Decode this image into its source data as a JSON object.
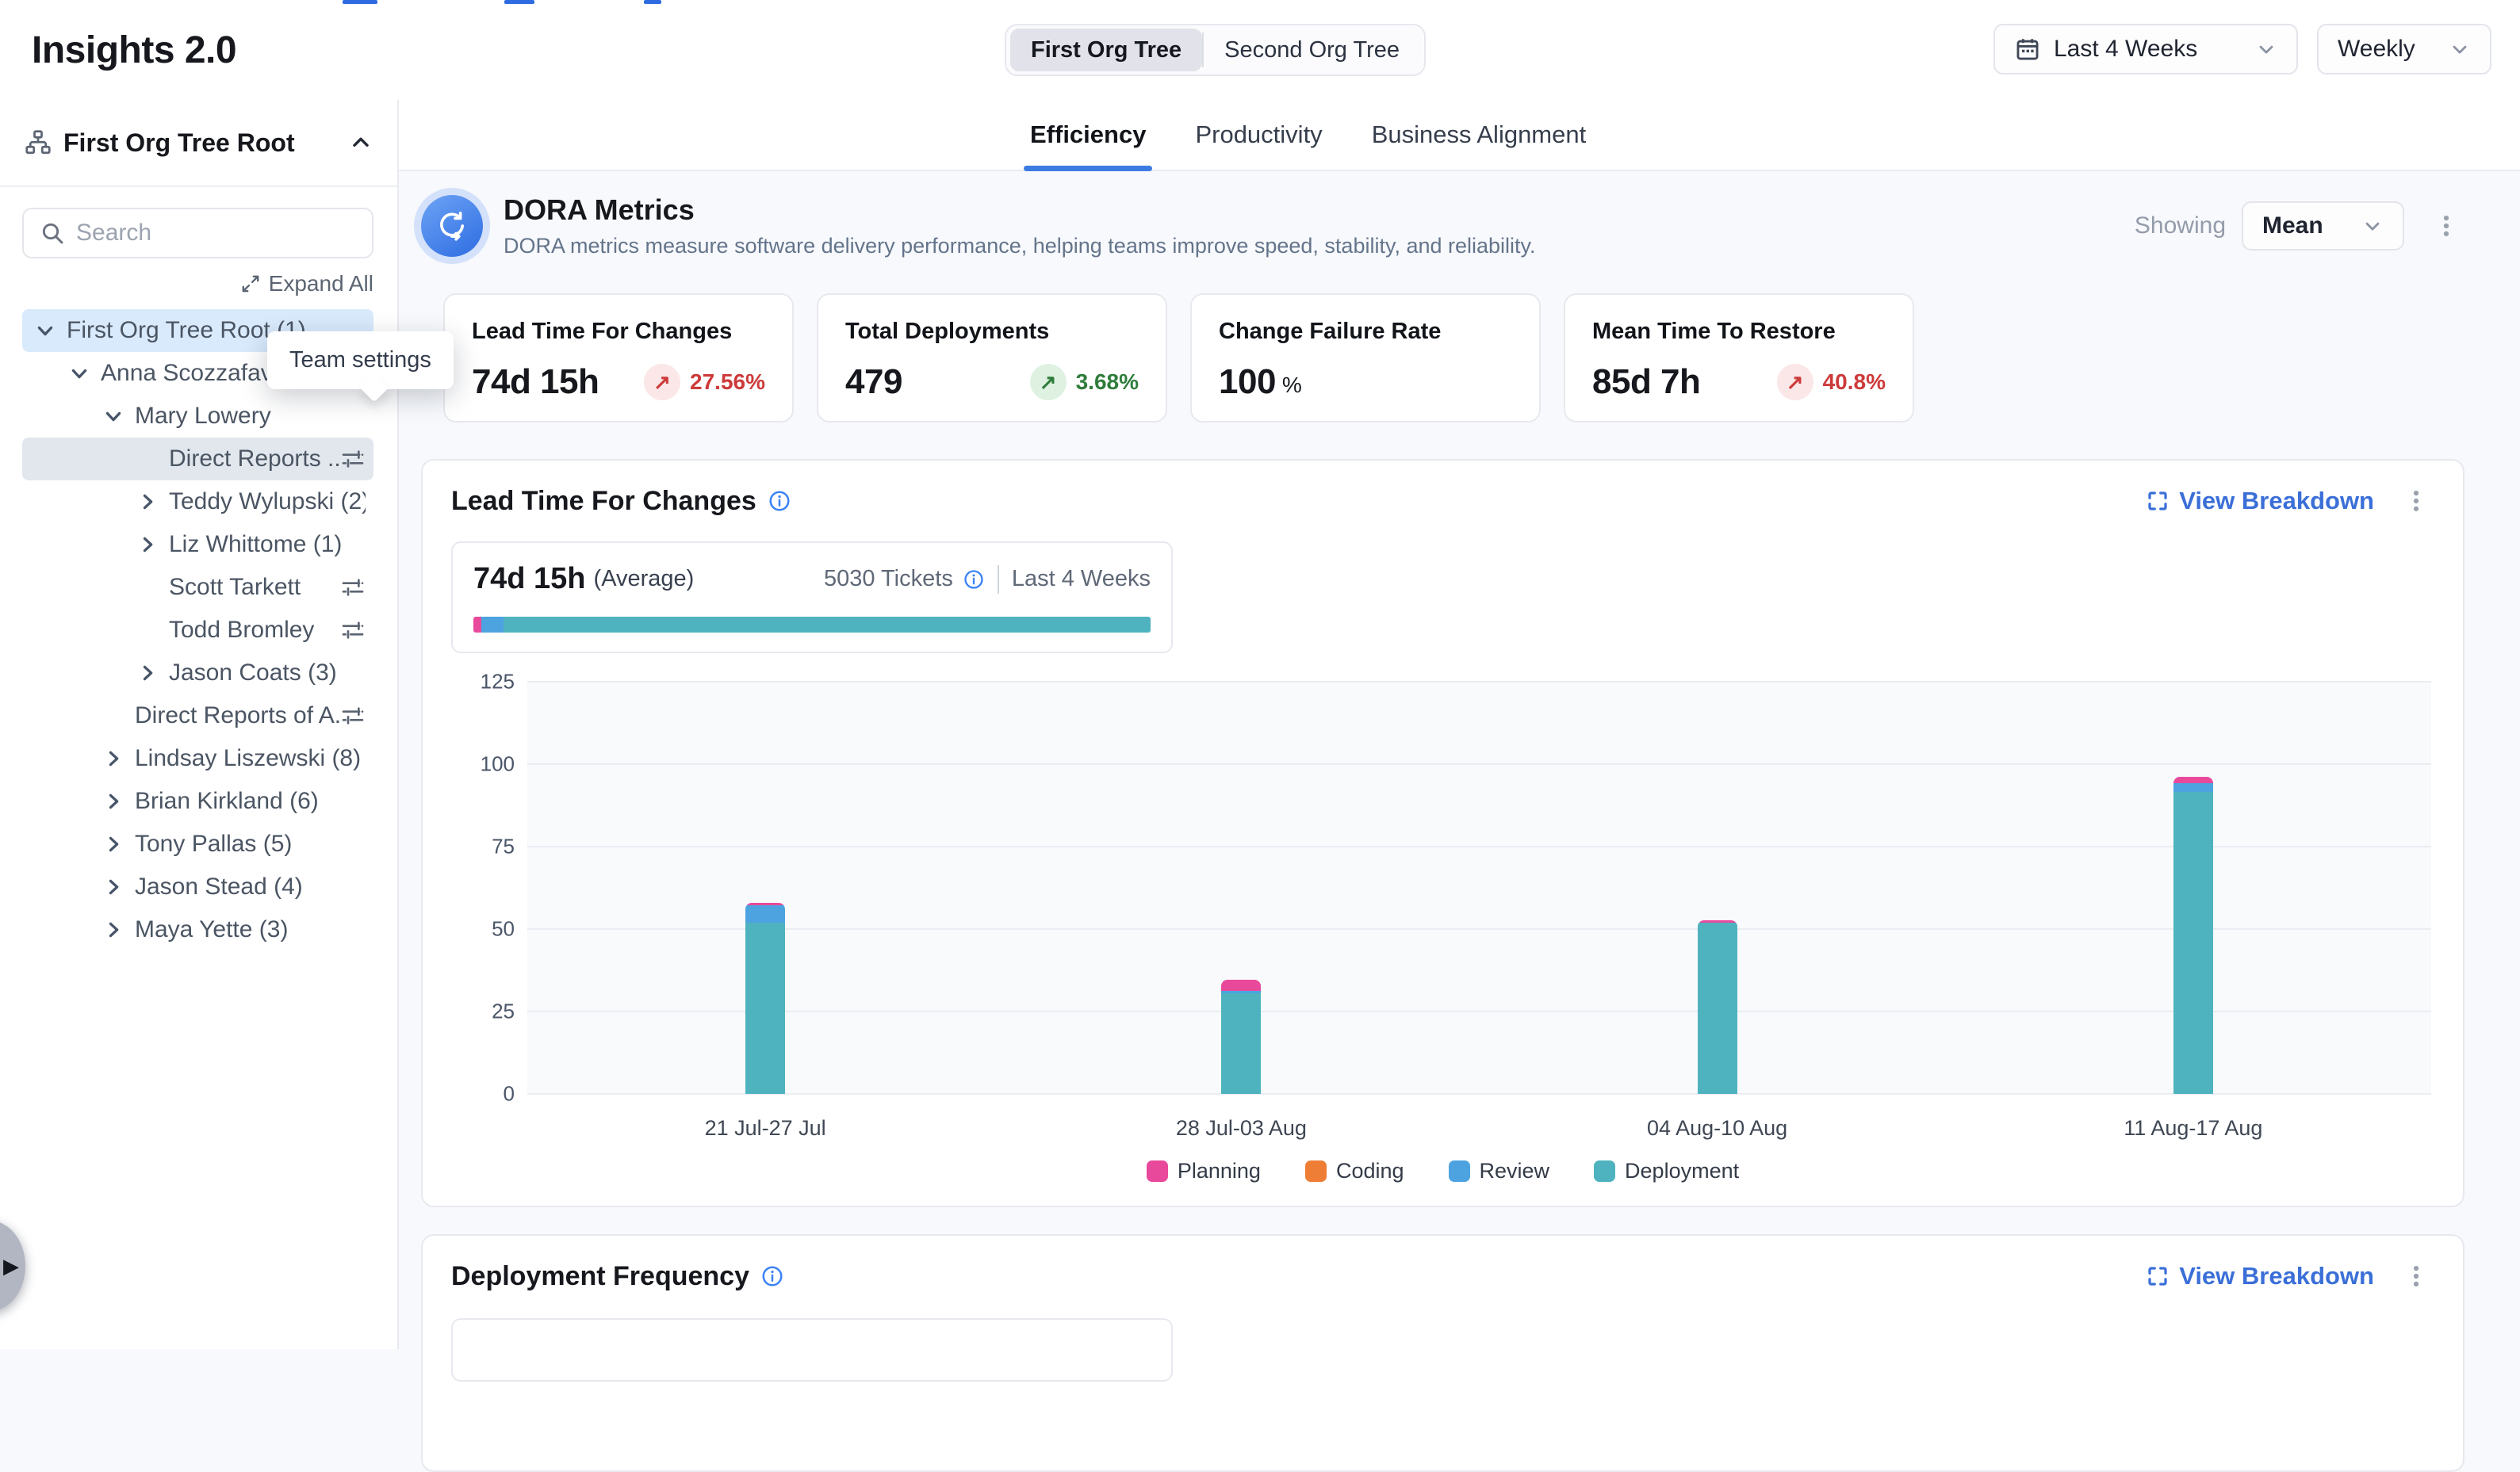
{
  "app": {
    "title": "Insights 2.0"
  },
  "header": {
    "org_toggle": {
      "options": [
        "First Org Tree",
        "Second Org Tree"
      ],
      "selected": "First Org Tree"
    },
    "date_range": "Last 4 Weeks",
    "granularity": "Weekly"
  },
  "sidebar": {
    "header": "First Org Tree Root",
    "search_placeholder": "Search",
    "expand_all": "Expand All",
    "tooltip": "Team settings",
    "tree": [
      {
        "label": "First Org Tree Root (1)",
        "level": 0,
        "chevron": "down",
        "selected": true,
        "settings": false,
        "hovered": false
      },
      {
        "label": "Anna Scozzafava",
        "level": 1,
        "chevron": "down",
        "selected": false,
        "settings": false,
        "hovered": false
      },
      {
        "label": "Mary Lowery",
        "level": 2,
        "chevron": "down",
        "selected": false,
        "settings": false,
        "hovered": false
      },
      {
        "label": "Direct Reports ...",
        "level": 3,
        "chevron": "none",
        "selected": false,
        "settings": true,
        "hovered": true
      },
      {
        "label": "Teddy Wylupski (2)",
        "level": 3,
        "chevron": "right",
        "selected": false,
        "settings": false,
        "hovered": false
      },
      {
        "label": "Liz Whittome (1)",
        "level": 3,
        "chevron": "right",
        "selected": false,
        "settings": false,
        "hovered": false
      },
      {
        "label": "Scott Tarkett",
        "level": 3,
        "chevron": "none",
        "selected": false,
        "settings": true,
        "hovered": false
      },
      {
        "label": "Todd Bromley",
        "level": 3,
        "chevron": "none",
        "selected": false,
        "settings": true,
        "hovered": false
      },
      {
        "label": "Jason Coats (3)",
        "level": 3,
        "chevron": "right",
        "selected": false,
        "settings": false,
        "hovered": false
      },
      {
        "label": "Direct Reports of A...",
        "level": 2,
        "chevron": "none",
        "selected": false,
        "settings": true,
        "hovered": false
      },
      {
        "label": "Lindsay Liszewski (8)",
        "level": 2,
        "chevron": "right",
        "selected": false,
        "settings": false,
        "hovered": false
      },
      {
        "label": "Brian Kirkland (6)",
        "level": 2,
        "chevron": "right",
        "selected": false,
        "settings": false,
        "hovered": false
      },
      {
        "label": "Tony Pallas (5)",
        "level": 2,
        "chevron": "right",
        "selected": false,
        "settings": false,
        "hovered": false
      },
      {
        "label": "Jason Stead (4)",
        "level": 2,
        "chevron": "right",
        "selected": false,
        "settings": false,
        "hovered": false
      },
      {
        "label": "Maya Yette (3)",
        "level": 2,
        "chevron": "right",
        "selected": false,
        "settings": false,
        "hovered": false
      }
    ]
  },
  "tabs": {
    "items": [
      "Efficiency",
      "Productivity",
      "Business Alignment"
    ],
    "active": "Efficiency"
  },
  "dora": {
    "title": "DORA Metrics",
    "description": "DORA metrics measure software delivery performance, helping teams improve speed, stability, and reliability.",
    "showing_label": "Showing",
    "showing_value": "Mean"
  },
  "metric_cards": [
    {
      "title": "Lead Time For Changes",
      "value": "74d 15h",
      "unit": "",
      "delta": "27.56%",
      "trend": "up",
      "sentiment": "neg"
    },
    {
      "title": "Total Deployments",
      "value": "479",
      "unit": "",
      "delta": "3.68%",
      "trend": "up",
      "sentiment": "pos"
    },
    {
      "title": "Change Failure Rate",
      "value": "100",
      "unit": "%",
      "delta": "",
      "trend": "",
      "sentiment": ""
    },
    {
      "title": "Mean Time To Restore",
      "value": "85d 7h",
      "unit": "",
      "delta": "40.8%",
      "trend": "up",
      "sentiment": "neg"
    }
  ],
  "lead_time_section": {
    "title": "Lead Time For Changes",
    "view_breakdown": "View Breakdown",
    "summary": {
      "value": "74d 15h",
      "label": "(Average)",
      "tickets": "5030 Tickets",
      "period": "Last 4 Weeks",
      "bar_segments": [
        {
          "series": "Planning",
          "pct": 1.2
        },
        {
          "series": "Review",
          "pct": 3.2
        },
        {
          "series": "Deployment",
          "pct": 95.6
        }
      ]
    },
    "chart_data": {
      "type": "bar",
      "stacked": true,
      "categories": [
        "21 Jul-27 Jul",
        "28 Jul-03 Aug",
        "04 Aug-10 Aug",
        "11 Aug-17 Aug"
      ],
      "series": [
        {
          "name": "Planning",
          "color": "#e8499b",
          "values": [
            0.8,
            3.2,
            0.6,
            2.0
          ]
        },
        {
          "name": "Coding",
          "color": "#ee7d35",
          "values": [
            0,
            0,
            0,
            0
          ]
        },
        {
          "name": "Review",
          "color": "#4da3e0",
          "values": [
            5.2,
            0.7,
            0,
            2.6
          ]
        },
        {
          "name": "Deployment",
          "color": "#4eb3bf",
          "values": [
            52.0,
            30.6,
            52.0,
            91.6
          ]
        }
      ],
      "totals": [
        58.0,
        34.5,
        52.6,
        96.2
      ],
      "ylim": [
        0,
        125
      ],
      "yticks": [
        0,
        25,
        50,
        75,
        100,
        125
      ],
      "grid": true,
      "legend_position": "bottom",
      "xlabel": "",
      "ylabel": ""
    }
  },
  "deployment_section": {
    "title": "Deployment Frequency",
    "view_breakdown": "View Breakdown"
  },
  "colors": {
    "accent_blue": "#3b6fd8",
    "tab_underline": "#3d7be2",
    "negative": "#cd3a3a",
    "positive": "#2f7d3b",
    "selected_row": "#d9eafc"
  }
}
